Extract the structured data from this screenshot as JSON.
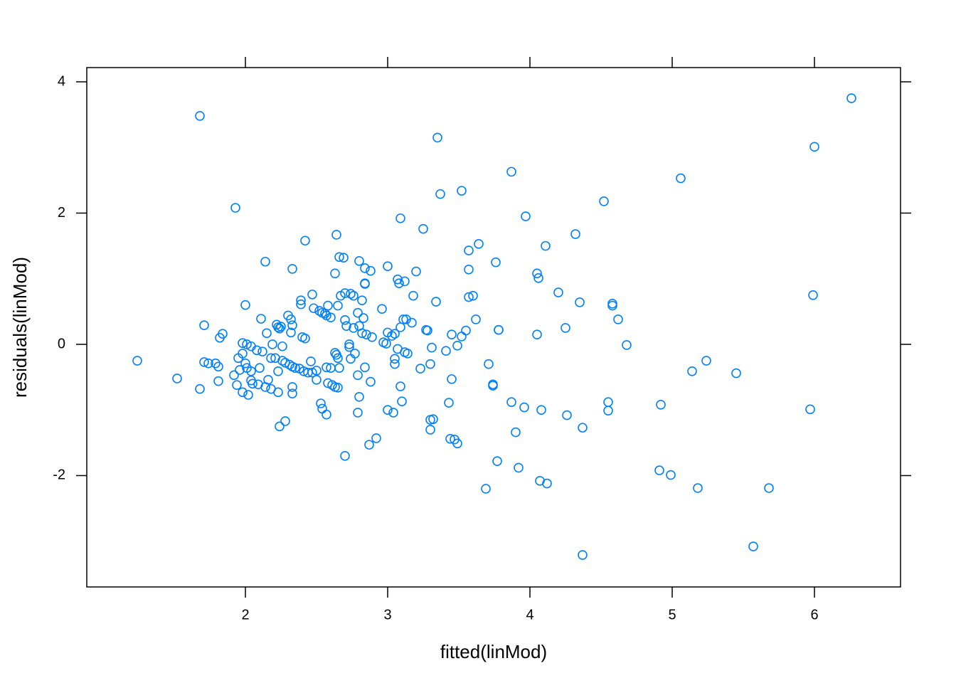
{
  "chart_data": {
    "type": "scatter",
    "xlabel": "fitted(linMod)",
    "ylabel": "residuals(linMod)",
    "color": "#0080ff",
    "xlim": [
      0.885,
      6.605
    ],
    "ylim": [
      -3.697,
      4.217
    ],
    "xticks": [
      2,
      3,
      4,
      5,
      6
    ],
    "yticks": [
      -2,
      0,
      2,
      4
    ],
    "x": [
      1.24,
      1.52,
      1.68,
      1.68,
      1.71,
      1.71,
      1.74,
      1.79,
      1.81,
      1.82,
      1.84,
      1.81,
      1.93,
      1.92,
      1.94,
      1.95,
      1.96,
      1.98,
      1.98,
      2.0,
      2.01,
      1.98,
      2.0,
      2.01,
      2.02,
      2.04,
      2.04,
      2.04,
      2.05,
      2.08,
      2.1,
      2.09,
      2.11,
      2.12,
      2.14,
      2.15,
      2.14,
      2.16,
      2.18,
      2.19,
      2.18,
      2.21,
      2.22,
      2.23,
      2.24,
      2.23,
      2.23,
      2.24,
      2.25,
      2.26,
      2.26,
      2.28,
      2.28,
      2.3,
      2.31,
      2.32,
      2.32,
      2.33,
      2.33,
      2.33,
      2.33,
      2.33,
      2.35,
      2.38,
      2.39,
      2.39,
      2.4,
      2.42,
      2.42,
      2.41,
      2.44,
      2.47,
      2.46,
      2.48,
      2.47,
      2.5,
      2.5,
      2.52,
      2.54,
      2.56,
      2.57,
      2.53,
      2.54,
      2.57,
      2.58,
      2.6,
      2.57,
      2.6,
      2.58,
      2.61,
      2.63,
      2.64,
      2.63,
      2.63,
      2.64,
      2.65,
      2.65,
      2.66,
      2.65,
      2.66,
      2.67,
      2.69,
      2.7,
      2.7,
      2.7,
      2.71,
      2.73,
      2.73,
      2.74,
      2.76,
      2.74,
      2.77,
      2.76,
      2.79,
      2.79,
      2.79,
      2.8,
      2.8,
      2.8,
      2.82,
      2.82,
      2.83,
      2.84,
      2.84,
      2.84,
      2.84,
      2.85,
      2.88,
      2.87,
      2.88,
      2.89,
      2.92,
      2.96,
      2.97,
      2.99,
      3.0,
      3.0,
      3.0,
      3.03,
      3.04,
      3.05,
      3.05,
      3.05,
      3.07,
      3.07,
      3.08,
      3.09,
      3.09,
      3.09,
      3.1,
      3.12,
      3.11,
      3.13,
      3.12,
      3.14,
      3.17,
      3.18,
      3.2,
      3.23,
      3.25,
      3.27,
      3.28,
      3.3,
      3.3,
      3.3,
      3.31,
      3.32,
      3.35,
      3.34,
      3.37,
      3.41,
      3.43,
      3.45,
      3.45,
      3.44,
      3.47,
      3.49,
      3.49,
      3.52,
      3.52,
      3.55,
      3.57,
      3.57,
      3.57,
      3.6,
      3.62,
      3.64,
      3.69,
      3.71,
      3.74,
      3.74,
      3.76,
      3.78,
      3.78,
      3.77,
      3.87,
      3.87,
      3.9,
      3.92,
      3.96,
      3.97,
      4.05,
      4.06,
      4.05,
      4.08,
      4.07,
      4.11,
      4.12,
      4.2,
      4.25,
      4.26,
      4.32,
      4.35,
      4.37,
      4.37,
      4.52,
      4.55,
      4.55,
      4.58,
      4.58,
      4.62,
      4.68,
      4.91,
      4.92,
      4.99,
      5.06,
      5.14,
      5.18,
      5.24,
      5.45,
      5.57,
      5.68,
      5.97,
      5.99,
      6.0,
      6.26
    ],
    "values": [
      -0.25,
      -0.52,
      3.48,
      -0.68,
      0.29,
      -0.27,
      -0.29,
      -0.29,
      -0.34,
      0.1,
      0.16,
      -0.56,
      2.08,
      -0.47,
      -0.62,
      -0.21,
      -0.39,
      -0.73,
      0.02,
      0.6,
      0.0,
      -0.14,
      -0.29,
      -0.36,
      -0.77,
      -0.03,
      -0.41,
      -0.55,
      -0.6,
      -0.09,
      -0.36,
      -0.61,
      0.39,
      -0.11,
      1.26,
      0.17,
      -0.65,
      -0.54,
      -0.21,
      0.0,
      -0.68,
      -0.21,
      0.3,
      0.26,
      0.24,
      -0.41,
      -0.73,
      -1.25,
      0.27,
      -0.03,
      -0.25,
      -1.17,
      -0.28,
      0.44,
      -0.31,
      0.38,
      0.18,
      1.15,
      -0.34,
      0.29,
      -0.65,
      -0.75,
      -0.36,
      -0.37,
      0.67,
      0.61,
      0.11,
      1.58,
      0.09,
      -0.41,
      -0.43,
      0.76,
      -0.26,
      0.55,
      -0.43,
      -0.4,
      -0.54,
      0.51,
      0.48,
      0.47,
      0.44,
      -0.9,
      -0.98,
      -1.07,
      0.59,
      0.41,
      -0.35,
      -0.36,
      -0.59,
      -0.62,
      -0.65,
      1.67,
      1.08,
      -0.13,
      -0.16,
      -0.21,
      -0.66,
      -0.36,
      0.59,
      1.33,
      0.74,
      1.32,
      0.37,
      -1.7,
      0.78,
      0.28,
      0.0,
      -0.04,
      0.77,
      0.25,
      -0.22,
      -0.14,
      0.74,
      0.48,
      -0.47,
      -1.04,
      1.27,
      0.28,
      -0.8,
      0.17,
      0.67,
      0.4,
      1.16,
      0.93,
      0.92,
      -0.35,
      0.15,
      1.12,
      -1.53,
      -0.57,
      0.11,
      -1.43,
      0.54,
      0.03,
      0.01,
      -1.0,
      1.19,
      0.18,
      0.13,
      -1.04,
      -0.22,
      -0.3,
      0.16,
      0.99,
      -0.07,
      0.93,
      0.26,
      1.92,
      -0.64,
      -0.87,
      0.96,
      0.38,
      0.38,
      -0.12,
      -0.14,
      0.33,
      0.74,
      1.11,
      -0.37,
      1.76,
      0.22,
      0.21,
      -1.15,
      -0.3,
      -1.3,
      -0.05,
      -1.14,
      3.15,
      0.65,
      2.29,
      -0.1,
      -0.89,
      0.15,
      -0.53,
      -1.44,
      -1.45,
      -1.51,
      -0.02,
      2.34,
      0.12,
      0.21,
      1.43,
      1.14,
      0.72,
      0.74,
      0.38,
      1.53,
      -2.2,
      -0.3,
      -0.61,
      -0.63,
      1.25,
      0.22,
      0.22,
      -1.78,
      2.63,
      -0.88,
      -1.34,
      -1.88,
      -0.96,
      1.95,
      1.08,
      1.01,
      0.15,
      -1.0,
      -2.08,
      1.5,
      -2.12,
      0.79,
      0.25,
      -1.08,
      1.68,
      0.64,
      -1.27,
      -3.21,
      2.18,
      -0.88,
      -1.01,
      0.62,
      0.59,
      0.38,
      -0.01,
      -1.92,
      -0.92,
      -1.99,
      2.53,
      -0.41,
      -2.19,
      -0.25,
      -0.44,
      -3.08,
      -2.19,
      -0.99,
      0.75,
      3.01,
      3.75
    ]
  }
}
